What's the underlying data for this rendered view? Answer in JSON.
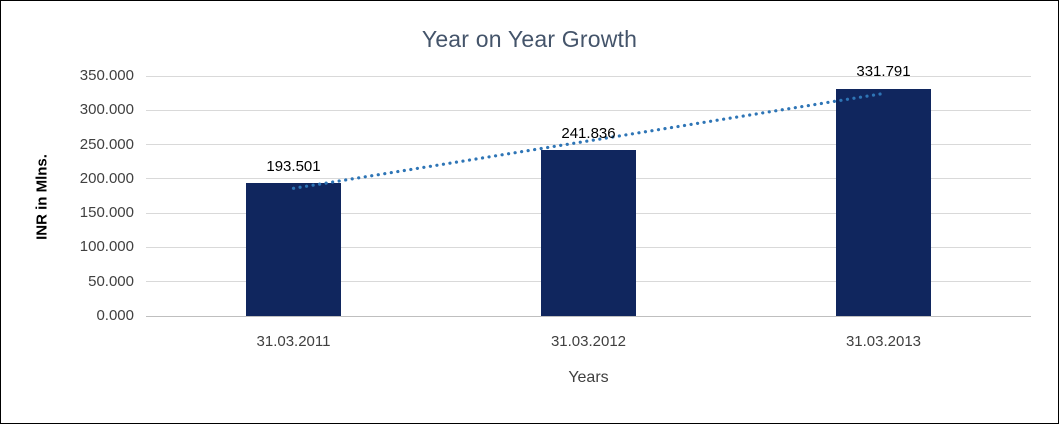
{
  "chart_data": {
    "type": "bar",
    "title": "Year on Year Growth",
    "categories": [
      "31.03.2011",
      "31.03.2012",
      "31.03.2013"
    ],
    "values": [
      193.501,
      241.836,
      331.791
    ],
    "value_labels": [
      "193.501",
      "241.836",
      "331.791"
    ],
    "xlabel": "Years",
    "ylabel": "INR in Mlns.",
    "ylim": [
      0,
      350
    ],
    "ytick_step": 50,
    "ytick_labels": [
      "0.000",
      "50.000",
      "100.000",
      "150.000",
      "200.000",
      "250.000",
      "300.000",
      "350.000"
    ],
    "grid": true,
    "legend": "none",
    "trendline": {
      "style": "dotted",
      "from_category": "31.03.2011",
      "to_category": "31.03.2013"
    },
    "colors": {
      "bar": "#10265e",
      "trendline": "#2e75b6",
      "gridline": "#d9d9d9",
      "axis_line": "#bfbfbf",
      "title_text": "#44546a",
      "tick_text": "#404040",
      "value_text": "#000000",
      "axis_title_text": "#404040",
      "y_axis_title_text": "#000000"
    }
  }
}
